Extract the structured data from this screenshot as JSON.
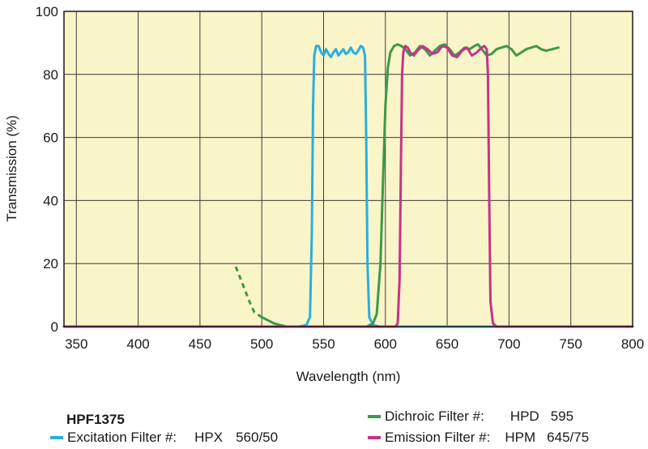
{
  "chart_data": {
    "type": "line",
    "title": "",
    "xlabel": "Wavelength (nm)",
    "ylabel": "Transmission (%)",
    "xlim": [
      340,
      800
    ],
    "ylim": [
      0,
      100
    ],
    "x_ticks": [
      350,
      400,
      450,
      500,
      550,
      600,
      650,
      700,
      750,
      800
    ],
    "y_ticks": [
      0,
      20,
      40,
      60,
      80,
      100
    ],
    "grid": true,
    "background_color": "#faf5c8",
    "series": [
      {
        "name": "Excitation Filter #:",
        "color": "#2aaee0",
        "points": [
          [
            340,
            0
          ],
          [
            400,
            0
          ],
          [
            500,
            0
          ],
          [
            530,
            0
          ],
          [
            536,
            0.5
          ],
          [
            539,
            3
          ],
          [
            540.5,
            30
          ],
          [
            541.5,
            70
          ],
          [
            542.5,
            86
          ],
          [
            544,
            89
          ],
          [
            546,
            89
          ],
          [
            548,
            87
          ],
          [
            550,
            86
          ],
          [
            552,
            88
          ],
          [
            554,
            86.5
          ],
          [
            556,
            85.5
          ],
          [
            558,
            87
          ],
          [
            560,
            88
          ],
          [
            562,
            86
          ],
          [
            564,
            87
          ],
          [
            566,
            88
          ],
          [
            568,
            86.5
          ],
          [
            570,
            87
          ],
          [
            572,
            88.5
          ],
          [
            574,
            87
          ],
          [
            576,
            86.5
          ],
          [
            578,
            87.5
          ],
          [
            580,
            89
          ],
          [
            582,
            88.5
          ],
          [
            583.5,
            86
          ],
          [
            584.5,
            60
          ],
          [
            585.5,
            20
          ],
          [
            587,
            3
          ],
          [
            590,
            0.5
          ],
          [
            595,
            0
          ],
          [
            650,
            0
          ],
          [
            700,
            0
          ],
          [
            800,
            0
          ]
        ]
      },
      {
        "name": "Dichroic Filter #:",
        "color": "#3a9a48",
        "dashed_start": [
          [
            479,
            19
          ],
          [
            485,
            13
          ],
          [
            490,
            8
          ],
          [
            494,
            4.5
          ],
          [
            500,
            3
          ]
        ],
        "points": [
          [
            500,
            3
          ],
          [
            505,
            2
          ],
          [
            510,
            1
          ],
          [
            515,
            0.5
          ],
          [
            520,
            0
          ],
          [
            585,
            0
          ],
          [
            590,
            1
          ],
          [
            593,
            4
          ],
          [
            596,
            20
          ],
          [
            598,
            45
          ],
          [
            600,
            70
          ],
          [
            602,
            82
          ],
          [
            604,
            87
          ],
          [
            607,
            89
          ],
          [
            610,
            89.5
          ],
          [
            613,
            89
          ],
          [
            616,
            88
          ],
          [
            620,
            86
          ],
          [
            624,
            87
          ],
          [
            628,
            89
          ],
          [
            632,
            88
          ],
          [
            636,
            86
          ],
          [
            640,
            87.5
          ],
          [
            644,
            89
          ],
          [
            648,
            89.5
          ],
          [
            652,
            88
          ],
          [
            656,
            86
          ],
          [
            660,
            87
          ],
          [
            664,
            88.5
          ],
          [
            668,
            88
          ],
          [
            672,
            89
          ],
          [
            675,
            89.5
          ],
          [
            678,
            88
          ],
          [
            682,
            86
          ],
          [
            686,
            86.5
          ],
          [
            690,
            88
          ],
          [
            694,
            88.5
          ],
          [
            698,
            89
          ],
          [
            702,
            88
          ],
          [
            706,
            86
          ],
          [
            710,
            87
          ],
          [
            714,
            88
          ],
          [
            718,
            88.5
          ],
          [
            722,
            89
          ],
          [
            726,
            88
          ],
          [
            730,
            87.5
          ],
          [
            735,
            88
          ],
          [
            740,
            88.5
          ]
        ]
      },
      {
        "name": "Emission Filter #:",
        "color": "#c8328a",
        "points": [
          [
            340,
            0
          ],
          [
            400,
            0
          ],
          [
            500,
            0
          ],
          [
            600,
            0
          ],
          [
            608,
            0
          ],
          [
            610,
            1
          ],
          [
            611.5,
            15
          ],
          [
            612.5,
            50
          ],
          [
            613.5,
            80
          ],
          [
            614.5,
            87
          ],
          [
            616,
            89
          ],
          [
            618,
            88.5
          ],
          [
            620,
            87
          ],
          [
            623,
            86
          ],
          [
            626,
            87.5
          ],
          [
            630,
            89
          ],
          [
            634,
            88
          ],
          [
            638,
            86.5
          ],
          [
            642,
            87
          ],
          [
            646,
            89
          ],
          [
            650,
            88.5
          ],
          [
            654,
            86
          ],
          [
            658,
            85.5
          ],
          [
            662,
            87.5
          ],
          [
            666,
            88.5
          ],
          [
            670,
            86
          ],
          [
            674,
            87
          ],
          [
            678,
            88.5
          ],
          [
            680,
            89
          ],
          [
            682,
            88
          ],
          [
            683,
            80
          ],
          [
            684,
            40
          ],
          [
            685,
            8
          ],
          [
            687,
            1
          ],
          [
            690,
            0
          ],
          [
            700,
            0
          ],
          [
            800,
            0
          ]
        ]
      }
    ]
  },
  "legend": {
    "title": "HPF1375",
    "items": [
      {
        "label": "Excitation Filter #:",
        "code": "HPX",
        "spec": "560/50",
        "color": "#2aaee0"
      },
      {
        "label": "Dichroic Filter #:",
        "code": "HPD",
        "spec": "595",
        "color": "#3a9a48"
      },
      {
        "label": "Emission Filter #:",
        "code": "HPM",
        "spec": "645/75",
        "color": "#c8328a"
      }
    ]
  }
}
